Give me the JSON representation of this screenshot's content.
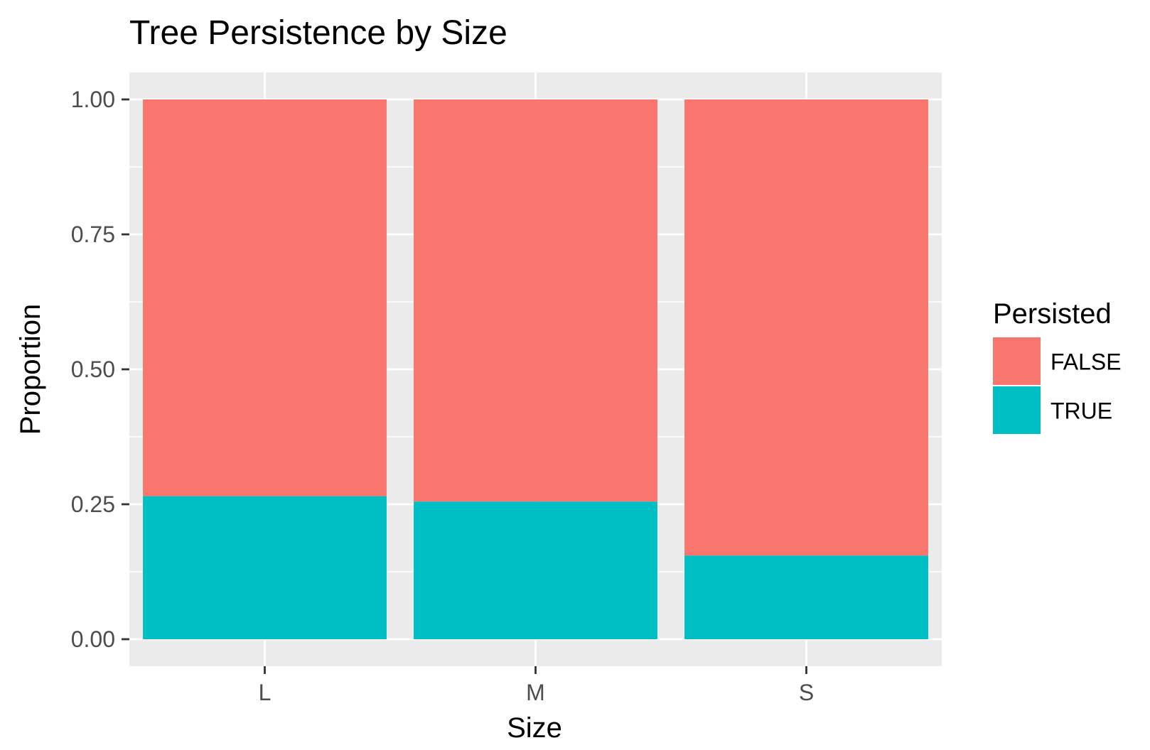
{
  "chart_data": {
    "type": "bar",
    "stacked": true,
    "title": "Tree Persistence by Size",
    "xlabel": "Size",
    "ylabel": "Proportion",
    "categories": [
      "L",
      "M",
      "S"
    ],
    "series": [
      {
        "name": "FALSE",
        "values": [
          0.735,
          0.745,
          0.845
        ],
        "color": "#F8766D"
      },
      {
        "name": "TRUE",
        "values": [
          0.265,
          0.255,
          0.155
        ],
        "color": "#00BFC4"
      }
    ],
    "ylim": [
      -0.05,
      1.05
    ],
    "yticks": [
      0.0,
      0.25,
      0.5,
      0.75,
      1.0
    ],
    "ytick_labels": [
      "0.00",
      "0.25",
      "0.50",
      "0.75",
      "1.00"
    ],
    "grid": true,
    "panel_background": "#EBEBEB",
    "legend": {
      "title": "Persisted",
      "position": "right",
      "entries": [
        "FALSE",
        "TRUE"
      ]
    }
  }
}
